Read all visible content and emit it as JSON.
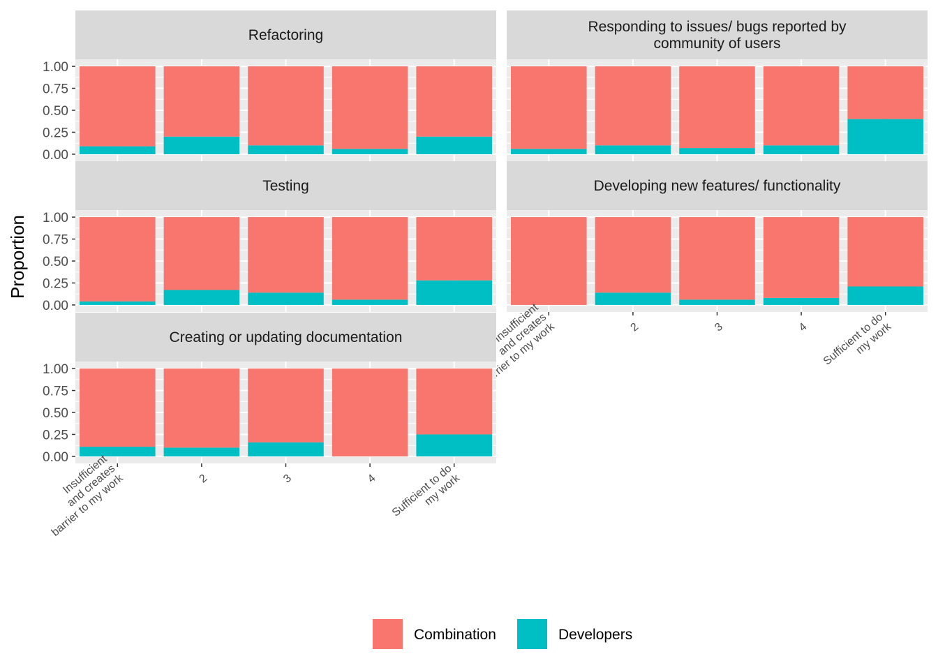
{
  "chart_data": {
    "type": "bar",
    "stacked": true,
    "y_axis_title": "Proportion",
    "categories": [
      "Insufficient\nand creates\nbarrier to my work",
      "2",
      "3",
      "4",
      "Sufficient to do\nmy work"
    ],
    "y_ticks": [
      "1.00",
      "0.75",
      "0.50",
      "0.25",
      "0.00"
    ],
    "ylim": [
      0,
      1
    ],
    "grid": true,
    "legend": {
      "placement": "bottom",
      "entries": [
        {
          "label": "Combination",
          "color": "#f8766d"
        },
        {
          "label": "Developers",
          "color": "#00bfc4"
        }
      ]
    },
    "facets": [
      {
        "title": "Refactoring",
        "series": [
          {
            "name": "Developers",
            "values": [
              0.09,
              0.2,
              0.1,
              0.06,
              0.2
            ]
          },
          {
            "name": "Combination",
            "values": [
              0.91,
              0.8,
              0.9,
              0.94,
              0.8
            ]
          }
        ]
      },
      {
        "title": "Responding to issues/ bugs reported by\ncommunity of users",
        "series": [
          {
            "name": "Developers",
            "values": [
              0.06,
              0.1,
              0.07,
              0.1,
              0.4
            ]
          },
          {
            "name": "Combination",
            "values": [
              0.94,
              0.9,
              0.93,
              0.9,
              0.6
            ]
          }
        ]
      },
      {
        "title": "Testing",
        "series": [
          {
            "name": "Developers",
            "values": [
              0.04,
              0.17,
              0.14,
              0.06,
              0.28
            ]
          },
          {
            "name": "Combination",
            "values": [
              0.96,
              0.83,
              0.86,
              0.94,
              0.72
            ]
          }
        ]
      },
      {
        "title": "Developing new features/ functionality",
        "series": [
          {
            "name": "Developers",
            "values": [
              0.0,
              0.14,
              0.06,
              0.08,
              0.21
            ]
          },
          {
            "name": "Combination",
            "values": [
              1.0,
              0.86,
              0.94,
              0.92,
              0.79
            ]
          }
        ]
      },
      {
        "title": "Creating or updating documentation",
        "series": [
          {
            "name": "Developers",
            "values": [
              0.11,
              0.1,
              0.16,
              0.0,
              0.25
            ]
          },
          {
            "name": "Combination",
            "values": [
              0.89,
              0.9,
              0.84,
              1.0,
              0.75
            ]
          }
        ]
      }
    ]
  }
}
